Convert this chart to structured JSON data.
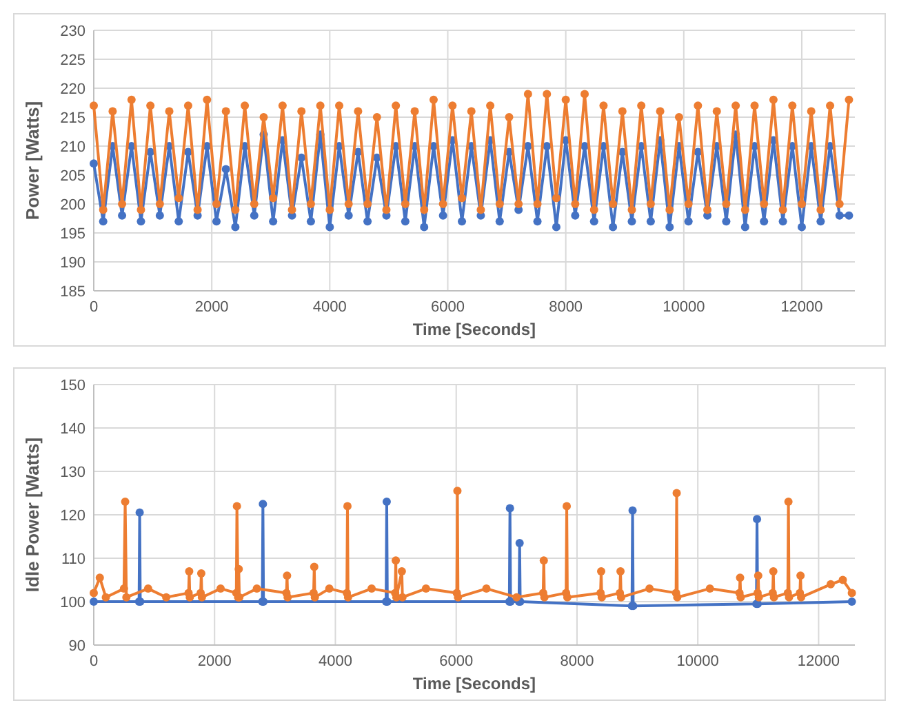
{
  "chart_data": [
    {
      "type": "line",
      "xlabel": "Time [Seconds]",
      "ylabel": "Power [Watts]",
      "xlim": [
        0,
        12900
      ],
      "xticks": [
        0,
        2000,
        4000,
        6000,
        8000,
        10000,
        12000
      ],
      "ylim": [
        185,
        230
      ],
      "yticks": [
        185,
        190,
        195,
        200,
        205,
        210,
        215,
        220,
        225,
        230
      ],
      "grid": true,
      "marker": "circle",
      "line_style": "solid",
      "x": [
        0,
        160,
        320,
        480,
        640,
        800,
        960,
        1120,
        1280,
        1440,
        1600,
        1760,
        1920,
        2080,
        2240,
        2400,
        2560,
        2720,
        2880,
        3040,
        3200,
        3360,
        3520,
        3680,
        3840,
        4000,
        4160,
        4320,
        4480,
        4640,
        4800,
        4960,
        5120,
        5280,
        5440,
        5600,
        5760,
        5920,
        6080,
        6240,
        6400,
        6560,
        6720,
        6880,
        7040,
        7200,
        7360,
        7520,
        7680,
        7840,
        8000,
        8160,
        8320,
        8480,
        8640,
        8800,
        8960,
        9120,
        9280,
        9440,
        9600,
        9760,
        9920,
        10080,
        10240,
        10400,
        10560,
        10720,
        10880,
        11040,
        11200,
        11360,
        11520,
        11680,
        11840,
        12000,
        12160,
        12320,
        12480,
        12640,
        12800
      ],
      "series": [
        {
          "color": "#4472c4",
          "values": [
            207,
            197,
            210,
            198,
            210,
            197,
            209,
            198,
            210,
            197,
            209,
            198,
            210,
            197,
            206,
            196,
            210,
            198,
            212,
            197,
            211,
            198,
            208,
            197,
            212,
            196,
            210,
            198,
            209,
            197,
            208,
            198,
            210,
            197,
            210,
            196,
            210,
            198,
            211,
            197,
            210,
            198,
            211,
            197,
            209,
            199,
            210,
            197,
            210,
            196,
            211,
            198,
            210,
            197,
            210,
            196,
            209,
            197,
            210,
            197,
            211,
            196,
            210,
            197,
            209,
            198,
            210,
            197,
            212,
            196,
            210,
            197,
            211,
            197,
            210,
            196,
            210,
            197,
            210,
            198,
            198
          ]
        },
        {
          "color": "#ed7d31",
          "values": [
            217,
            199,
            216,
            200,
            218,
            199,
            217,
            200,
            216,
            201,
            217,
            199,
            218,
            200,
            216,
            199,
            217,
            200,
            215,
            201,
            217,
            199,
            216,
            200,
            217,
            199,
            217,
            200,
            216,
            200,
            215,
            199,
            217,
            200,
            216,
            199,
            218,
            200,
            217,
            201,
            216,
            199,
            217,
            200,
            215,
            200,
            219,
            200,
            219,
            201,
            218,
            200,
            219,
            199,
            217,
            200,
            216,
            199,
            217,
            200,
            216,
            199,
            215,
            200,
            217,
            199,
            216,
            200,
            217,
            199,
            217,
            200,
            218,
            199,
            217,
            200,
            216,
            199,
            217,
            200,
            218
          ]
        }
      ]
    },
    {
      "type": "line",
      "xlabel": "Time [Seconds]",
      "ylabel": "Idle Power [Watts]",
      "xlim": [
        0,
        12600
      ],
      "xticks": [
        0,
        2000,
        4000,
        6000,
        8000,
        10000,
        12000
      ],
      "ylim": [
        90,
        150
      ],
      "yticks": [
        90,
        100,
        110,
        120,
        130,
        140,
        150
      ],
      "grid": true,
      "marker": "circle",
      "line_style": "solid",
      "series": [
        {
          "color": "#4472c4",
          "x": [
            0,
            750,
            760,
            770,
            2790,
            2800,
            2810,
            4840,
            4850,
            4860,
            6880,
            6890,
            6900,
            7040,
            7050,
            7060,
            8910,
            8920,
            8930,
            10970,
            10980,
            10990,
            12550
          ],
          "values": [
            100,
            100,
            120.5,
            100,
            100,
            122.5,
            100,
            100,
            123,
            100,
            100,
            121.5,
            100,
            100,
            113.5,
            100,
            99,
            121,
            99,
            99.5,
            119,
            99.5,
            100
          ]
        },
        {
          "color": "#ed7d31",
          "x": [
            0,
            100,
            200,
            500,
            520,
            540,
            900,
            1200,
            1570,
            1580,
            1590,
            1770,
            1780,
            1790,
            2100,
            2360,
            2370,
            2390,
            2400,
            2410,
            2700,
            3190,
            3200,
            3210,
            3640,
            3650,
            3660,
            3900,
            4190,
            4200,
            4210,
            4600,
            4990,
            5000,
            5010,
            5100,
            5110,
            5500,
            6010,
            6020,
            6030,
            6500,
            7000,
            7440,
            7450,
            7460,
            7820,
            7830,
            7840,
            8390,
            8400,
            8410,
            8710,
            8720,
            8730,
            9200,
            9640,
            9650,
            9660,
            10200,
            10690,
            10700,
            10710,
            10990,
            11000,
            11010,
            11240,
            11250,
            11260,
            11490,
            11500,
            11510,
            11690,
            11700,
            11710,
            12200,
            12400,
            12550
          ],
          "values": [
            102,
            105.5,
            101,
            103,
            123,
            101,
            103,
            101,
            102,
            107,
            101,
            102,
            106.5,
            101,
            103,
            102,
            122,
            101,
            107.5,
            101,
            103,
            102,
            106,
            101,
            102,
            108,
            101,
            103,
            102,
            122,
            101,
            103,
            102,
            109.5,
            101,
            107,
            101,
            103,
            102,
            125.5,
            101,
            103,
            101,
            102,
            109.5,
            101,
            102,
            122,
            101,
            102,
            107,
            101,
            102,
            107,
            101,
            103,
            102,
            125,
            101,
            103,
            102,
            105.5,
            101,
            102,
            106,
            101,
            102,
            107,
            101,
            102,
            123,
            101,
            102,
            106,
            101,
            104,
            105,
            102
          ]
        }
      ]
    }
  ]
}
